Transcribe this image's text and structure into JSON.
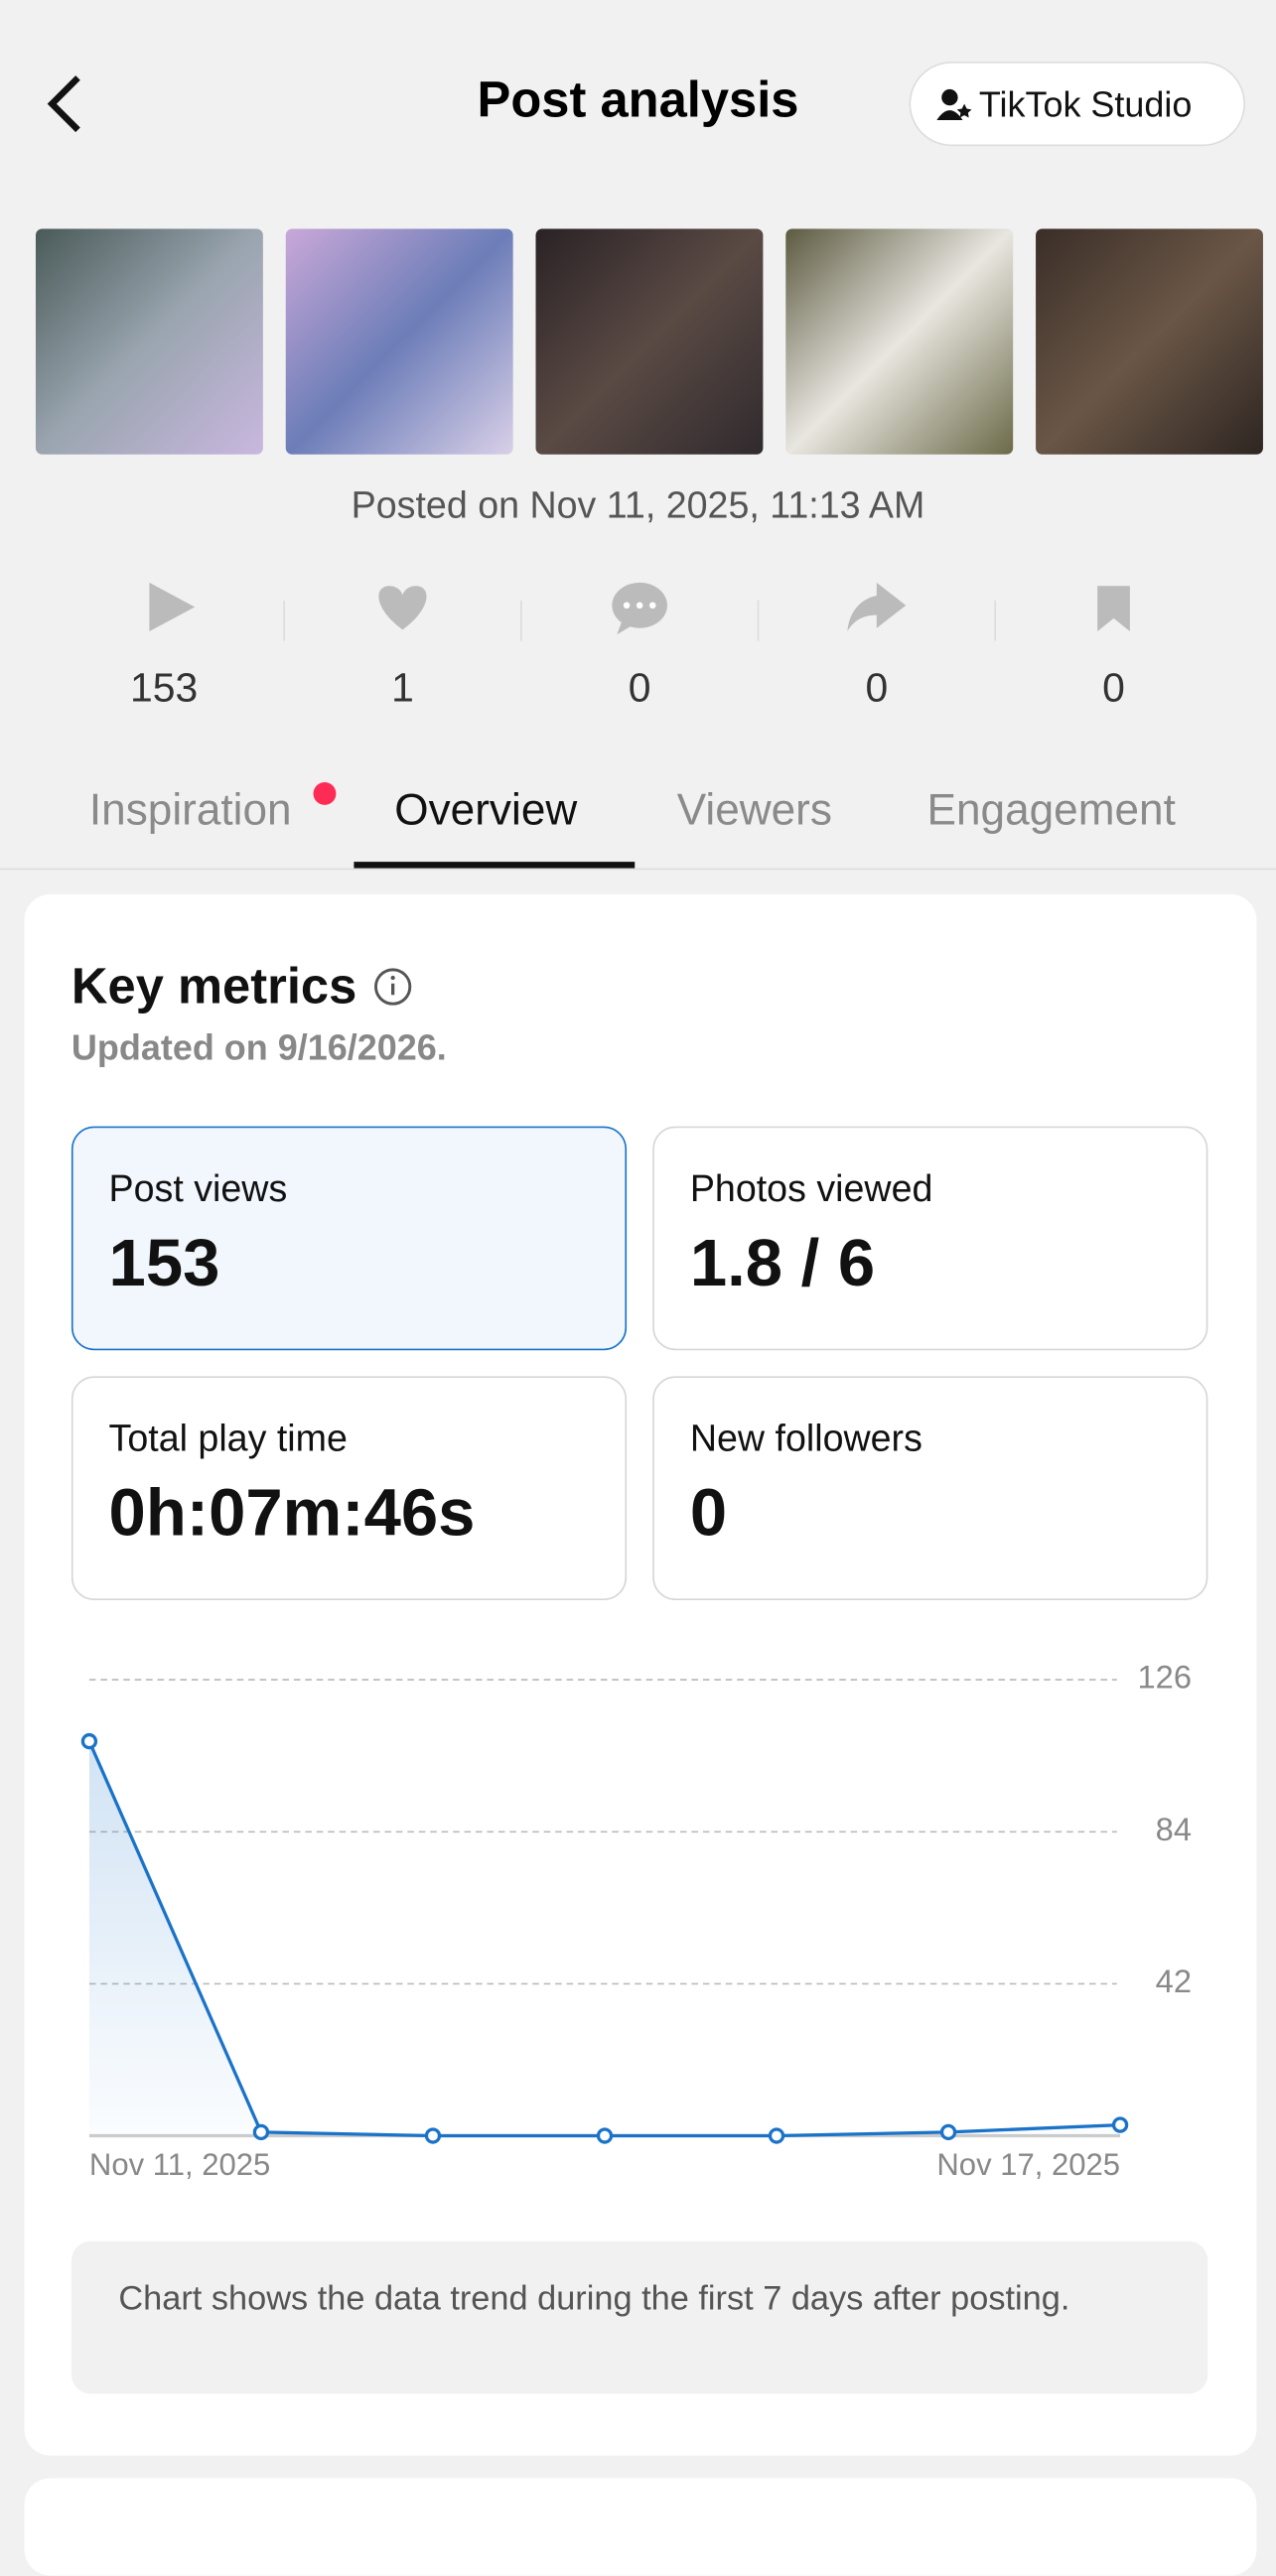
{
  "header": {
    "title": "Post analysis",
    "studio_button": "TikTok Studio"
  },
  "posted": "Posted on Nov 11, 2025, 11:13 AM",
  "stats": [
    153,
    1,
    0,
    0,
    0
  ],
  "tabs": [
    "Inspiration",
    "Overview",
    "Viewers",
    "Engagement"
  ],
  "key_metrics": {
    "title": "Key metrics",
    "updated": "Updated on 9/16/2026.",
    "cards": [
      {
        "label": "Post views",
        "value": "153"
      },
      {
        "label": "Photos viewed",
        "value": "1.8 / 6"
      },
      {
        "label": "Total play time",
        "value": "0h:07m:46s"
      },
      {
        "label": "New followers",
        "value": "0"
      }
    ]
  },
  "chart_data": {
    "type": "line",
    "categories": [
      "Nov 11, 2025",
      null,
      null,
      null,
      null,
      null,
      "Nov 17, 2025"
    ],
    "series": [
      {
        "name": "Post views",
        "color": "#1a73c8",
        "values": [
          109,
          1,
          0,
          0,
          0,
          1,
          3
        ]
      }
    ],
    "ylim": [
      0,
      126
    ],
    "yticks": [
      42,
      84,
      126
    ],
    "grid": true
  },
  "note": "Chart shows the data trend during the first 7 days after posting."
}
